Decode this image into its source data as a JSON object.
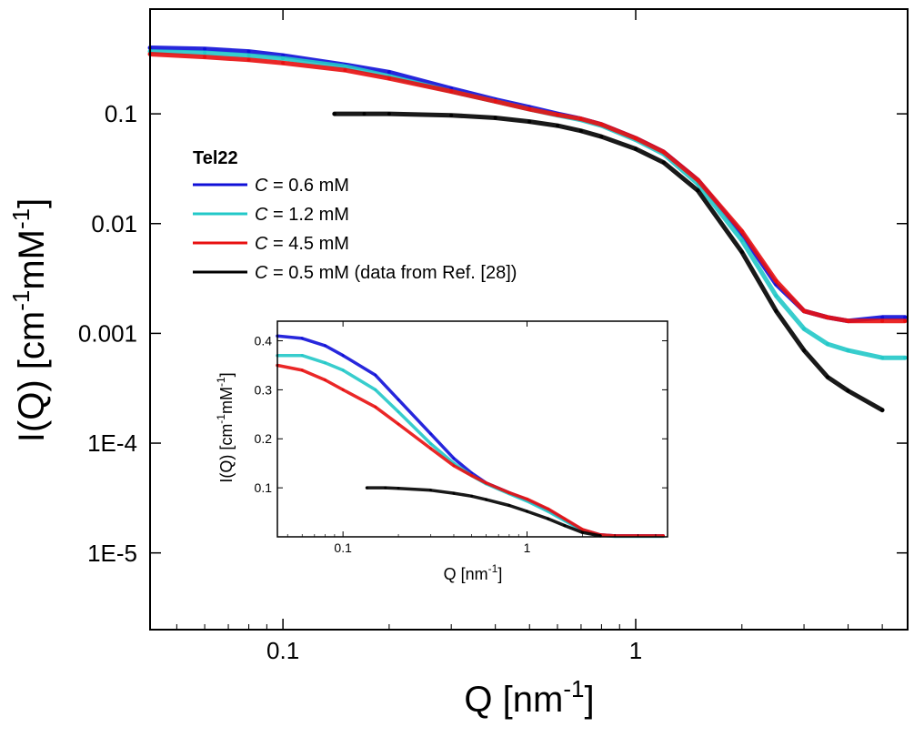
{
  "chart_data": {
    "type": "line",
    "xscale": "log",
    "yscale": "log",
    "xlabel": "Q [nm⁻¹]",
    "xlabel_main": "Q [nm",
    "xlabel_sup": "-1",
    "xlabel_end": "]",
    "ylabel": "I(Q) [cm⁻¹mM⁻¹]",
    "ylabel_parts": [
      "I(Q) [cm",
      "-1",
      "mM",
      "-1",
      "]"
    ],
    "xlim": [
      0.042,
      5.9
    ],
    "ylim": [
      2e-06,
      0.9
    ],
    "xticks": [
      {
        "v": 0.1,
        "label": "0.1"
      },
      {
        "v": 1,
        "label": "1"
      }
    ],
    "yticks": [
      {
        "v": 1e-05,
        "label": "1E-5"
      },
      {
        "v": 0.0001,
        "label": "1E-4"
      },
      {
        "v": 0.001,
        "label": "0.001"
      },
      {
        "v": 0.01,
        "label": "0.01"
      },
      {
        "v": 0.1,
        "label": "0.1"
      }
    ],
    "legend": {
      "title": "Tel22",
      "placement": "center-left",
      "entries": [
        {
          "var": "C",
          "rest": " = 0.6 mM",
          "color": "#1010d8"
        },
        {
          "var": "C",
          "rest": " = 1.2 mM",
          "color": "#22c8c8"
        },
        {
          "var": "C",
          "rest": " = 4.5 mM",
          "color": "#e81010"
        },
        {
          "var": "C",
          "rest": " = 0.5 mM (data from Ref. [28])",
          "color": "#000000"
        }
      ]
    },
    "series": [
      {
        "name": "C = 0.6 mM",
        "color": "#1010d8",
        "x": [
          0.042,
          0.06,
          0.08,
          0.1,
          0.15,
          0.2,
          0.3,
          0.4,
          0.5,
          0.6,
          0.7,
          0.8,
          1.0,
          1.2,
          1.5,
          2.0,
          2.5,
          3.0,
          3.5,
          4.0,
          5.0,
          5.8
        ],
        "y": [
          0.4,
          0.39,
          0.37,
          0.34,
          0.28,
          0.24,
          0.17,
          0.135,
          0.115,
          0.1,
          0.09,
          0.08,
          0.06,
          0.045,
          0.025,
          0.008,
          0.0028,
          0.0016,
          0.0014,
          0.0013,
          0.0014,
          0.0014
        ]
      },
      {
        "name": "C = 1.2 mM",
        "color": "#22c8c8",
        "x": [
          0.042,
          0.06,
          0.08,
          0.1,
          0.15,
          0.2,
          0.3,
          0.4,
          0.5,
          0.6,
          0.7,
          0.8,
          1.0,
          1.2,
          1.5,
          2.0,
          2.5,
          3.0,
          3.5,
          4.0,
          5.0,
          5.8
        ],
        "y": [
          0.37,
          0.36,
          0.34,
          0.32,
          0.27,
          0.22,
          0.16,
          0.13,
          0.11,
          0.097,
          0.088,
          0.078,
          0.058,
          0.043,
          0.023,
          0.007,
          0.0022,
          0.0011,
          0.0008,
          0.0007,
          0.0006,
          0.0006
        ]
      },
      {
        "name": "C = 4.5 mM",
        "color": "#e81010",
        "x": [
          0.042,
          0.06,
          0.08,
          0.1,
          0.15,
          0.2,
          0.3,
          0.4,
          0.5,
          0.6,
          0.7,
          0.8,
          1.0,
          1.2,
          1.5,
          2.0,
          2.5,
          3.0,
          3.5,
          4.0,
          5.0,
          5.8
        ],
        "y": [
          0.35,
          0.33,
          0.31,
          0.29,
          0.25,
          0.21,
          0.16,
          0.13,
          0.11,
          0.098,
          0.09,
          0.08,
          0.06,
          0.045,
          0.025,
          0.0085,
          0.003,
          0.0016,
          0.0014,
          0.0013,
          0.0013,
          0.0013
        ]
      },
      {
        "name": "C = 0.5 mM (data from Ref. [28])",
        "color": "#000000",
        "x": [
          0.14,
          0.17,
          0.2,
          0.3,
          0.4,
          0.5,
          0.6,
          0.7,
          0.8,
          1.0,
          1.2,
          1.5,
          2.0,
          2.5,
          3.0,
          3.5,
          4.0,
          5.0
        ],
        "y": [
          0.1,
          0.1,
          0.1,
          0.097,
          0.092,
          0.085,
          0.078,
          0.07,
          0.062,
          0.048,
          0.036,
          0.02,
          0.0055,
          0.0016,
          0.0007,
          0.0004,
          0.0003,
          0.0002
        ]
      }
    ],
    "inset": {
      "type": "line",
      "xscale": "log",
      "yscale": "linear",
      "xlabel_main": "Q [nm",
      "xlabel_sup": "-1",
      "xlabel_end": "]",
      "ylabel_parts": [
        "I(Q) [cm",
        "-1",
        "mM",
        "-1",
        "]"
      ],
      "xlim": [
        0.044,
        5.8
      ],
      "ylim": [
        0.0,
        0.44
      ],
      "xticks": [
        {
          "v": 0.1,
          "label": "0.1"
        },
        {
          "v": 1,
          "label": "1"
        }
      ],
      "yticks": [
        {
          "v": 0.1,
          "label": "0.1"
        },
        {
          "v": 0.2,
          "label": "0.2"
        },
        {
          "v": 0.3,
          "label": "0.3"
        },
        {
          "v": 0.4,
          "label": "0.4"
        }
      ],
      "series": [
        {
          "name": "C = 0.6 mM",
          "color": "#1010d8",
          "x": [
            0.044,
            0.06,
            0.08,
            0.1,
            0.15,
            0.2,
            0.3,
            0.4,
            0.5,
            0.6,
            0.8,
            1.0,
            1.3,
            1.6,
            2.0,
            2.5,
            3.0,
            4.0,
            5.5
          ],
          "y": [
            0.41,
            0.405,
            0.39,
            0.37,
            0.33,
            0.28,
            0.21,
            0.16,
            0.13,
            0.11,
            0.09,
            0.075,
            0.055,
            0.035,
            0.014,
            0.004,
            0.002,
            0.002,
            0.002
          ]
        },
        {
          "name": "C = 1.2 mM",
          "color": "#22c8c8",
          "x": [
            0.044,
            0.06,
            0.08,
            0.1,
            0.15,
            0.2,
            0.3,
            0.4,
            0.5,
            0.6,
            0.8,
            1.0,
            1.3,
            1.6,
            2.0,
            2.5,
            3.0,
            4.0,
            5.5
          ],
          "y": [
            0.37,
            0.37,
            0.355,
            0.34,
            0.3,
            0.255,
            0.19,
            0.15,
            0.125,
            0.108,
            0.088,
            0.073,
            0.052,
            0.033,
            0.013,
            0.003,
            0.001,
            0.001,
            0.001
          ]
        },
        {
          "name": "C = 4.5 mM",
          "color": "#e81010",
          "x": [
            0.044,
            0.06,
            0.08,
            0.1,
            0.15,
            0.2,
            0.3,
            0.4,
            0.5,
            0.6,
            0.8,
            1.0,
            1.3,
            1.6,
            2.0,
            2.5,
            3.0,
            4.0,
            5.5
          ],
          "y": [
            0.35,
            0.34,
            0.32,
            0.3,
            0.265,
            0.23,
            0.18,
            0.145,
            0.125,
            0.11,
            0.09,
            0.077,
            0.057,
            0.037,
            0.015,
            0.004,
            0.002,
            0.002,
            0.002
          ]
        },
        {
          "name": "C = 0.5 mM (data from Ref. [28])",
          "color": "#000000",
          "x": [
            0.135,
            0.17,
            0.2,
            0.3,
            0.4,
            0.5,
            0.6,
            0.8,
            1.0,
            1.3,
            1.6,
            2.0,
            2.5
          ],
          "y": [
            0.1,
            0.1,
            0.099,
            0.095,
            0.089,
            0.083,
            0.076,
            0.064,
            0.052,
            0.037,
            0.023,
            0.009,
            0.002
          ]
        }
      ]
    }
  }
}
